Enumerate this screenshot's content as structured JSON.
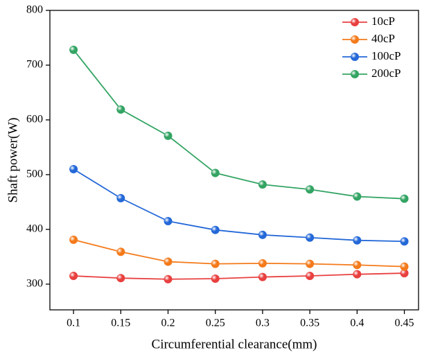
{
  "chart_data": {
    "type": "line",
    "x_label": "Circumferential clearance(mm)",
    "y_label": "Shaft power(W)",
    "x": [
      0.1,
      0.15,
      0.2,
      0.25,
      0.3,
      0.35,
      0.4,
      0.45
    ],
    "xlim": [
      0.075,
      0.465
    ],
    "xticks": [
      0.1,
      0.15,
      0.2,
      0.25,
      0.3,
      0.35,
      0.4,
      0.45
    ],
    "ylim": [
      253,
      800
    ],
    "yticks": [
      300,
      400,
      500,
      600,
      700,
      800
    ],
    "legend": "upper-right",
    "series": [
      {
        "name": "10cP",
        "color": "#e8403f",
        "values": [
          315,
          311,
          309,
          310,
          313,
          315,
          318,
          320
        ]
      },
      {
        "name": "40cP",
        "color": "#f47a1a",
        "values": [
          381,
          359,
          341,
          337,
          338,
          337,
          335,
          332
        ]
      },
      {
        "name": "100cP",
        "color": "#2468d8",
        "values": [
          510,
          457,
          415,
          399,
          390,
          385,
          380,
          378
        ]
      },
      {
        "name": "200cP",
        "color": "#33a463",
        "values": [
          728,
          619,
          571,
          503,
          482,
          473,
          460,
          456
        ]
      }
    ]
  }
}
